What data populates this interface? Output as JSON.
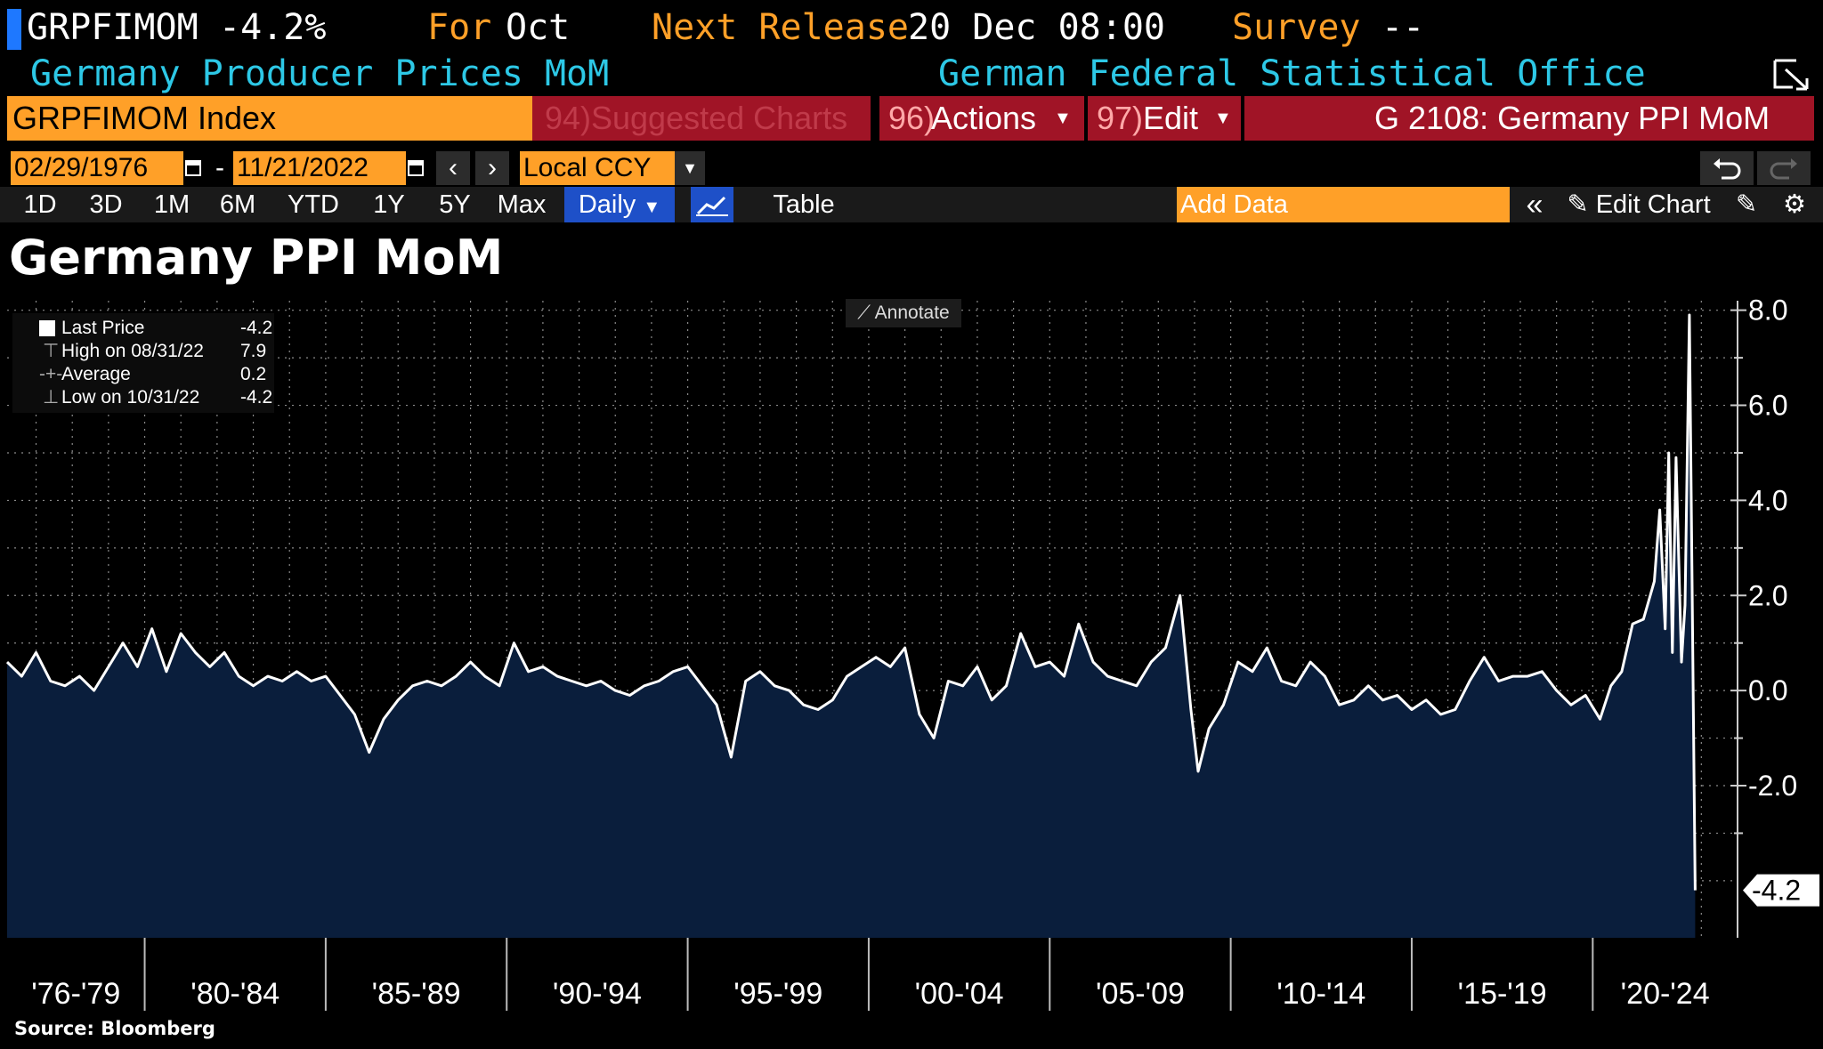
{
  "header": {
    "ticker": "GRPFIMOM",
    "change": "-4.2%",
    "for_label": "For",
    "for_value": "Oct",
    "next_release_label": "Next Release",
    "next_release_value": "20 Dec 08:00",
    "survey_label": "Survey",
    "survey_value": "--",
    "description": "Germany Producer Prices MoM",
    "source_org": "German Federal Statistical Office"
  },
  "toolbar": {
    "security": "GRPFIMOM Index",
    "suggested_num": "94)",
    "suggested_label": "Suggested Charts",
    "actions_num": "96)",
    "actions_label": "Actions",
    "edit_num": "97)",
    "edit_label": "Edit",
    "function_label": "G 2108: Germany PPI MoM",
    "start_date": "02/29/1976",
    "end_date": "11/21/2022",
    "date_sep": "-",
    "currency": "Local CCY",
    "ranges": [
      "1D",
      "3D",
      "1M",
      "6M",
      "YTD",
      "1Y",
      "5Y",
      "Max"
    ],
    "frequency": "Daily",
    "table_label": "Table",
    "add_data_placeholder": "Add Data",
    "edit_chart_label": "Edit Chart"
  },
  "legend": {
    "rows": [
      {
        "label": "Last Price",
        "value": "-4.2"
      },
      {
        "label": "High on 08/31/22",
        "value": "7.9"
      },
      {
        "label": "Average",
        "value": "0.2"
      },
      {
        "label": "Low on 10/31/22",
        "value": "-4.2"
      }
    ]
  },
  "annotate_label": "Annotate",
  "source": "Source: Bloomberg",
  "colors": {
    "orange": "#ffa028",
    "cyan": "#2dc8e6",
    "blue": "#1e78ff",
    "red": "#a01426",
    "area_fill": "#0a1e3c",
    "line": "#ffffff"
  },
  "chart_data": {
    "type": "area",
    "title": "Germany PPI MoM",
    "series": [
      {
        "name": "Last Price",
        "last": -4.2
      }
    ],
    "ylim": [
      -5.2,
      8.2
    ],
    "y_ticks": [
      "8.0",
      "6.0",
      "4.0",
      "2.0",
      "0.0",
      "-2.0"
    ],
    "last_label": "-4.2",
    "x_periods": [
      "'76-'79",
      "'80-'84",
      "'85-'89",
      "'90-'94",
      "'95-'99",
      "'00-'04",
      "'05-'09",
      "'10-'14",
      "'15-'19",
      "'20-'24"
    ],
    "grid": true,
    "points": [
      [
        1976.2,
        0.6
      ],
      [
        1976.6,
        0.3
      ],
      [
        1977.0,
        0.8
      ],
      [
        1977.4,
        0.2
      ],
      [
        1977.8,
        0.1
      ],
      [
        1978.2,
        0.3
      ],
      [
        1978.6,
        0.0
      ],
      [
        1979.0,
        0.5
      ],
      [
        1979.4,
        1.0
      ],
      [
        1979.8,
        0.5
      ],
      [
        1980.2,
        1.3
      ],
      [
        1980.6,
        0.4
      ],
      [
        1981.0,
        1.2
      ],
      [
        1981.4,
        0.8
      ],
      [
        1981.8,
        0.5
      ],
      [
        1982.2,
        0.8
      ],
      [
        1982.6,
        0.3
      ],
      [
        1983.0,
        0.1
      ],
      [
        1983.4,
        0.3
      ],
      [
        1983.8,
        0.2
      ],
      [
        1984.2,
        0.4
      ],
      [
        1984.6,
        0.2
      ],
      [
        1985.0,
        0.3
      ],
      [
        1985.4,
        -0.1
      ],
      [
        1985.8,
        -0.5
      ],
      [
        1986.2,
        -1.3
      ],
      [
        1986.6,
        -0.6
      ],
      [
        1987.0,
        -0.2
      ],
      [
        1987.4,
        0.1
      ],
      [
        1987.8,
        0.2
      ],
      [
        1988.2,
        0.1
      ],
      [
        1988.6,
        0.3
      ],
      [
        1989.0,
        0.6
      ],
      [
        1989.4,
        0.3
      ],
      [
        1989.8,
        0.1
      ],
      [
        1990.2,
        1.0
      ],
      [
        1990.6,
        0.4
      ],
      [
        1991.0,
        0.5
      ],
      [
        1991.4,
        0.3
      ],
      [
        1991.8,
        0.2
      ],
      [
        1992.2,
        0.1
      ],
      [
        1992.6,
        0.2
      ],
      [
        1993.0,
        0.0
      ],
      [
        1993.4,
        -0.1
      ],
      [
        1993.8,
        0.1
      ],
      [
        1994.2,
        0.2
      ],
      [
        1994.6,
        0.4
      ],
      [
        1995.0,
        0.5
      ],
      [
        1995.4,
        0.1
      ],
      [
        1995.8,
        -0.3
      ],
      [
        1996.2,
        -1.4
      ],
      [
        1996.6,
        0.2
      ],
      [
        1997.0,
        0.4
      ],
      [
        1997.4,
        0.1
      ],
      [
        1997.8,
        0.0
      ],
      [
        1998.2,
        -0.3
      ],
      [
        1998.6,
        -0.4
      ],
      [
        1999.0,
        -0.2
      ],
      [
        1999.4,
        0.3
      ],
      [
        1999.8,
        0.5
      ],
      [
        2000.2,
        0.7
      ],
      [
        2000.6,
        0.5
      ],
      [
        2001.0,
        0.9
      ],
      [
        2001.4,
        -0.5
      ],
      [
        2001.8,
        -1.0
      ],
      [
        2002.2,
        0.2
      ],
      [
        2002.6,
        0.1
      ],
      [
        2003.0,
        0.5
      ],
      [
        2003.4,
        -0.2
      ],
      [
        2003.8,
        0.1
      ],
      [
        2004.2,
        1.2
      ],
      [
        2004.6,
        0.5
      ],
      [
        2005.0,
        0.6
      ],
      [
        2005.4,
        0.3
      ],
      [
        2005.8,
        1.4
      ],
      [
        2006.2,
        0.6
      ],
      [
        2006.6,
        0.3
      ],
      [
        2007.0,
        0.2
      ],
      [
        2007.4,
        0.1
      ],
      [
        2007.8,
        0.6
      ],
      [
        2008.2,
        0.9
      ],
      [
        2008.6,
        2.0
      ],
      [
        2008.9,
        -0.4
      ],
      [
        2009.1,
        -1.7
      ],
      [
        2009.4,
        -0.8
      ],
      [
        2009.8,
        -0.3
      ],
      [
        2010.2,
        0.6
      ],
      [
        2010.6,
        0.4
      ],
      [
        2011.0,
        0.9
      ],
      [
        2011.4,
        0.2
      ],
      [
        2011.8,
        0.1
      ],
      [
        2012.2,
        0.6
      ],
      [
        2012.6,
        0.3
      ],
      [
        2013.0,
        -0.3
      ],
      [
        2013.4,
        -0.2
      ],
      [
        2013.8,
        0.1
      ],
      [
        2014.2,
        -0.2
      ],
      [
        2014.6,
        -0.1
      ],
      [
        2015.0,
        -0.4
      ],
      [
        2015.4,
        -0.2
      ],
      [
        2015.8,
        -0.5
      ],
      [
        2016.2,
        -0.4
      ],
      [
        2016.6,
        0.2
      ],
      [
        2017.0,
        0.7
      ],
      [
        2017.4,
        0.2
      ],
      [
        2017.8,
        0.3
      ],
      [
        2018.2,
        0.3
      ],
      [
        2018.6,
        0.4
      ],
      [
        2019.0,
        0.0
      ],
      [
        2019.4,
        -0.3
      ],
      [
        2019.8,
        -0.1
      ],
      [
        2020.2,
        -0.6
      ],
      [
        2020.5,
        0.1
      ],
      [
        2020.8,
        0.4
      ],
      [
        2021.1,
        1.4
      ],
      [
        2021.4,
        1.5
      ],
      [
        2021.7,
        2.3
      ],
      [
        2021.85,
        3.8
      ],
      [
        2022.0,
        1.3
      ],
      [
        2022.1,
        5.0
      ],
      [
        2022.2,
        0.8
      ],
      [
        2022.3,
        4.9
      ],
      [
        2022.45,
        0.6
      ],
      [
        2022.55,
        1.8
      ],
      [
        2022.67,
        7.9
      ],
      [
        2022.83,
        -4.2
      ]
    ]
  }
}
